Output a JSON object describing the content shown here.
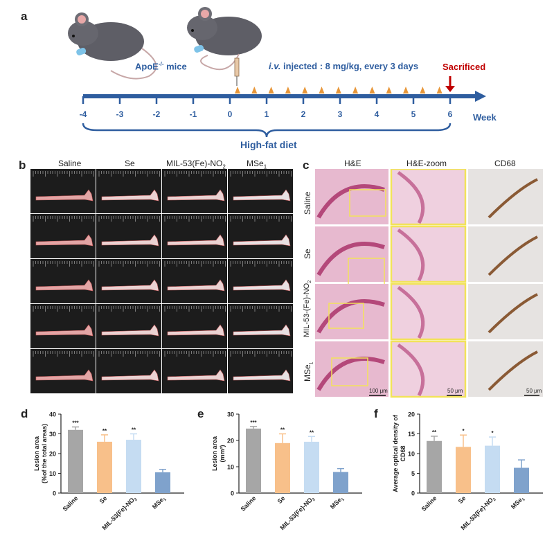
{
  "panel_a": {
    "label": "a",
    "mice_label": "ApoE",
    "mice_label_sup": "-/-",
    "mice_label_tail": " mice",
    "injection_italic": "i.v.",
    "injection_text": " injected : 8 mg/kg, every 3 days",
    "sacrificed": "Sacrificed",
    "ticks": [
      "-4",
      "-3",
      "-2",
      "-1",
      "0",
      "1",
      "2",
      "3",
      "4",
      "5",
      "6"
    ],
    "week_label": "Week",
    "diet_label": "High-fat diet"
  },
  "panel_b": {
    "label": "b",
    "columns": [
      "Saline",
      "Se",
      "MIL-53(Fe)-NO",
      "MSe"
    ],
    "col3_sub": "2",
    "col4_sub": "1"
  },
  "panel_c": {
    "label": "c",
    "columns": [
      "H&E",
      "H&E-zoom",
      "CD68"
    ],
    "rows": [
      "Saline",
      "Se",
      "MIL-53-(Fe)-NO",
      "MSe"
    ],
    "row3_sub": "2",
    "row4_sub": "1",
    "scale_he": "100 μm",
    "scale_zoom": "50 μm",
    "scale_cd68": "50 μm"
  },
  "chart_data": [
    {
      "panel": "d",
      "type": "bar",
      "categories": [
        "Saline",
        "Se",
        "MIL-53(Fe)-NO2",
        "MSe1"
      ],
      "values": [
        32,
        26,
        27,
        10.5
      ],
      "errors": [
        1.5,
        3.5,
        3,
        1.5
      ],
      "significance": [
        "***",
        "**",
        "**",
        ""
      ],
      "ylabel_line1": "Lesion area",
      "ylabel_line2": "(%of the total areas)",
      "ylim": [
        0,
        40
      ],
      "yticks": [
        0,
        10,
        20,
        30,
        40
      ],
      "colors": [
        "#A6A6A6",
        "#F8C08A",
        "#C5DCF2",
        "#7FA2CC"
      ]
    },
    {
      "panel": "e",
      "type": "bar",
      "categories": [
        "Saline",
        "Se",
        "MIL-53(Fe)-NO2",
        "MSe1"
      ],
      "values": [
        24.5,
        19,
        19.5,
        8
      ],
      "errors": [
        0.8,
        3.5,
        2,
        1.3
      ],
      "significance": [
        "***",
        "**",
        "**",
        ""
      ],
      "ylabel_line1": "Lesion area",
      "ylabel_line2": "(mm²)",
      "ylim": [
        0,
        30
      ],
      "yticks": [
        0,
        10,
        20,
        30
      ],
      "colors": [
        "#A6A6A6",
        "#F8C08A",
        "#C5DCF2",
        "#7FA2CC"
      ]
    },
    {
      "panel": "f",
      "type": "bar",
      "categories": [
        "Saline",
        "Se",
        "MIL-53(Fe)-NO2",
        "MSe1"
      ],
      "values": [
        13.2,
        11.7,
        12,
        6.4
      ],
      "errors": [
        1.2,
        3,
        2.2,
        2
      ],
      "significance": [
        "**",
        "*",
        "*",
        ""
      ],
      "ylabel_line1": "Average optical density of",
      "ylabel_line2": "CD68",
      "ylim": [
        0,
        20
      ],
      "yticks": [
        0,
        5,
        10,
        15,
        20
      ],
      "colors": [
        "#A6A6A6",
        "#F8C08A",
        "#C5DCF2",
        "#7FA2CC"
      ]
    }
  ],
  "bar_labels": {
    "saline": "Saline",
    "se": "Se",
    "mil": "MIL-53(Fe)-NO",
    "mil_sub": "2",
    "mse": "MSe",
    "mse_sub": "1"
  },
  "panel_labels": {
    "d": "d",
    "e": "e",
    "f": "f"
  }
}
